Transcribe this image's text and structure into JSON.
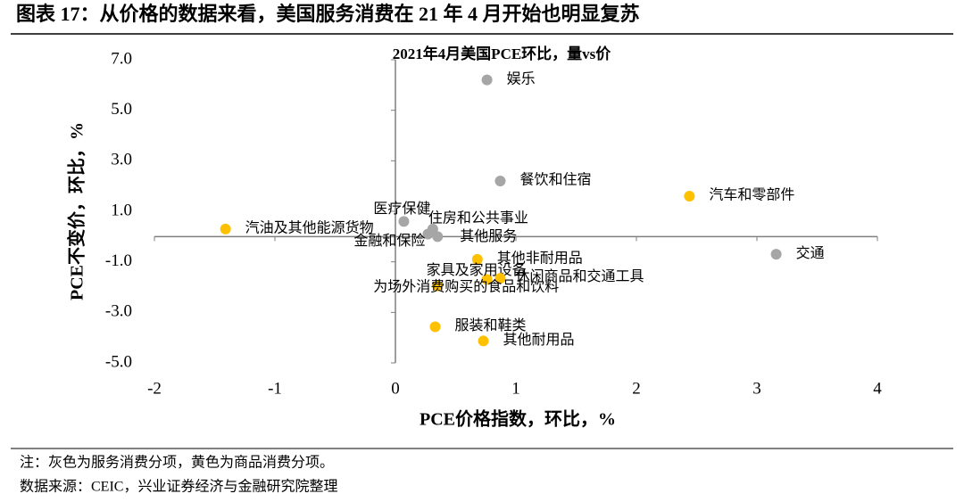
{
  "header": {
    "title": "图表 17：从价格的数据来看，美国服务消费在 21 年 4 月开始也明显复苏"
  },
  "chart_data": {
    "type": "scatter",
    "title": "2021年4月美国PCE环比，量vs价",
    "x_label": "PCE价格指数，环比，%",
    "y_label": "PCE不变价，环比，%",
    "point_labels": [
      "娱乐",
      "餐饮和住宿",
      "汽车和零部件",
      "交通",
      "汽油及其他能源货物",
      "医疗保健",
      "住房和公共事业",
      "金融和保险",
      "其他服务",
      "其他非耐用品",
      "家具及家用设备",
      "休闲商品和交通工具",
      "为场外消费购买的食品和饮料",
      "服装和鞋类",
      "其他耐用品"
    ],
    "x": [
      0.76,
      0.87,
      2.44,
      3.16,
      -1.41,
      0.07,
      0.31,
      0.27,
      0.35,
      0.68,
      0.76,
      0.87,
      0.35,
      0.33,
      0.73
    ],
    "values": [
      6.2,
      2.2,
      1.6,
      -0.7,
      0.3,
      0.6,
      0.3,
      0.1,
      0.0,
      -0.9,
      -1.7,
      -1.65,
      -1.95,
      -3.57,
      -4.13
    ],
    "colors": [
      "#a6a6a6",
      "#a6a6a6",
      "#ffc000",
      "#a6a6a6",
      "#ffc000",
      "#a6a6a6",
      "#a6a6a6",
      "#a6a6a6",
      "#a6a6a6",
      "#ffc000",
      "#ffc000",
      "#ffc000",
      "#ffc000",
      "#ffc000",
      "#ffc000"
    ],
    "xlim": [
      -2,
      4
    ],
    "xticks": [
      -2,
      -1,
      0,
      1,
      2,
      3,
      4
    ],
    "ylim": [
      -5,
      7
    ],
    "yticks": [
      {
        "value": 7,
        "label": "7.0"
      },
      {
        "value": 5,
        "label": "5.0"
      },
      {
        "value": 3,
        "label": "3.0"
      },
      {
        "value": 1,
        "label": "1.0"
      },
      {
        "value": -1,
        "label": "-1.0"
      },
      {
        "value": -3,
        "label": "-3.0"
      },
      {
        "value": -5,
        "label": "-5.0"
      }
    ]
  },
  "notes": [
    "注：灰色为服务消费分项，黄色为商品消费分项。",
    "数据来源：CEIC，兴业证券经济与金融研究院整理"
  ]
}
